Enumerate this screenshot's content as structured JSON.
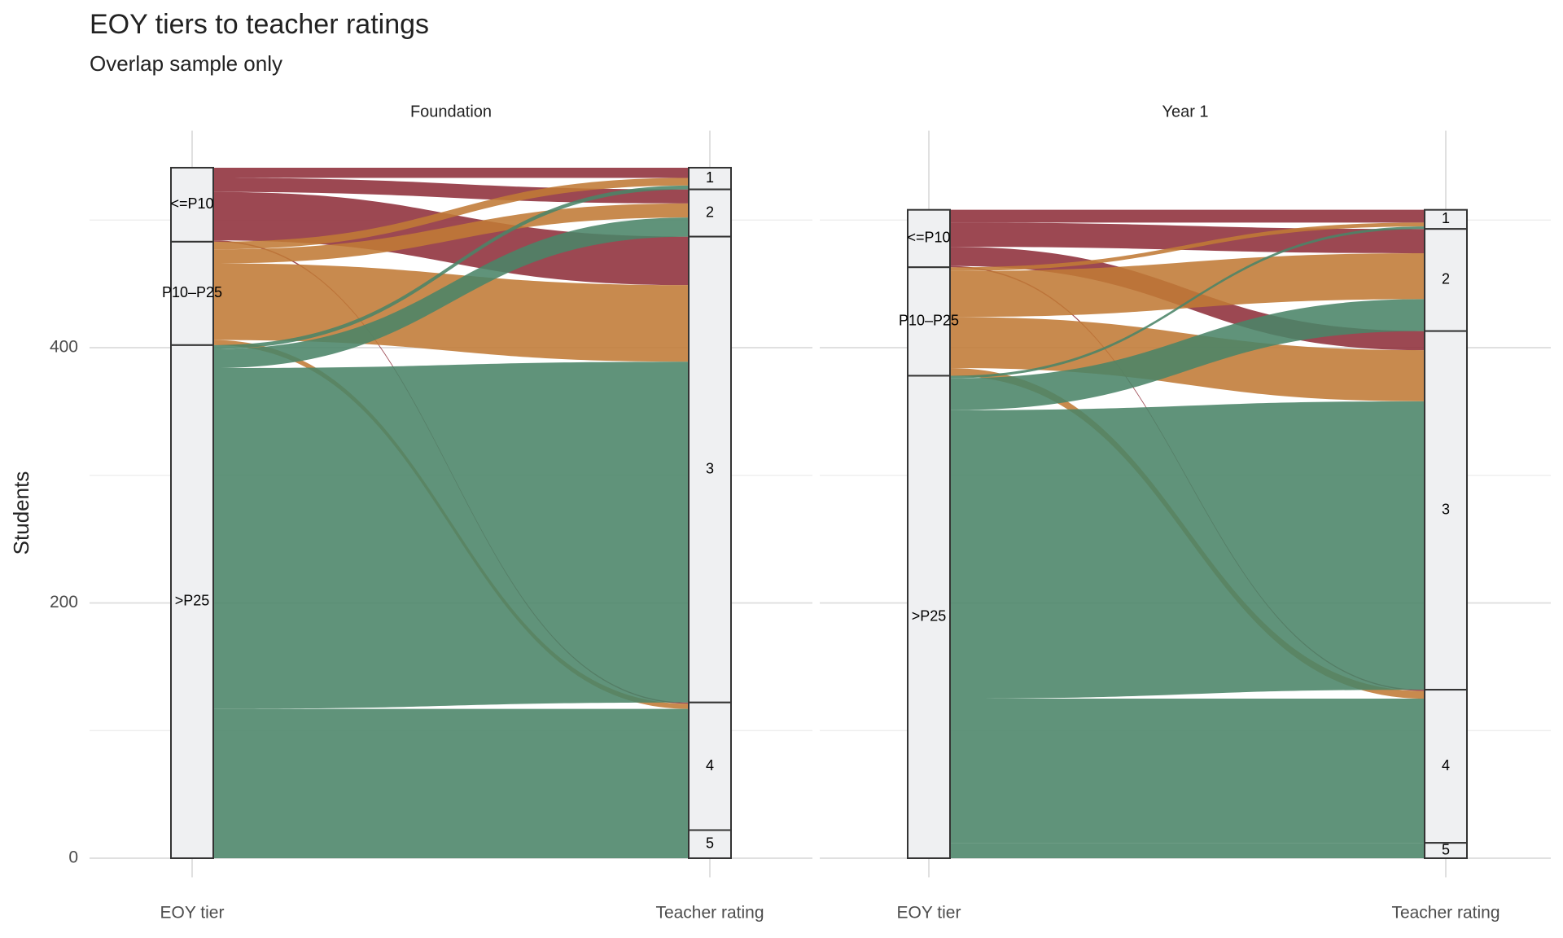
{
  "chart_data": {
    "type": "alluvial",
    "title": "EOY tiers to teacher ratings",
    "subtitle": "Overlap sample only",
    "y_label": "Students",
    "axes": [
      "EOY tier",
      "Teacher rating"
    ],
    "ylim": [
      -15,
      570
    ],
    "yticks": [
      0,
      200,
      400
    ],
    "minor_yticks": [
      100,
      300,
      500
    ],
    "rating_levels": [
      "1",
      "2",
      "3",
      "4",
      "5"
    ],
    "panels": [
      {
        "title": "Foundation",
        "series": [
          {
            "name": "<=P10",
            "color": "#8e2f3a",
            "values": [
              8,
              11,
              38,
              1,
              0
            ]
          },
          {
            "name": "P10–P25",
            "color": "#c07a35",
            "values": [
              6,
              11,
              60,
              4,
              0
            ]
          },
          {
            "name": ">P25",
            "color": "#4a8468",
            "values": [
              3,
              15,
              267,
              95,
              22
            ]
          }
        ]
      },
      {
        "title": "Year 1",
        "series": [
          {
            "name": "<=P10",
            "color": "#8e2f3a",
            "values": [
              10,
              19,
              15,
              1,
              0
            ]
          },
          {
            "name": "P10–P25",
            "color": "#c07a35",
            "values": [
              3,
              36,
              40,
              6,
              0
            ]
          },
          {
            "name": ">P25",
            "color": "#4a8468",
            "values": [
              2,
              25,
              226,
              113,
              12
            ]
          }
        ]
      }
    ]
  }
}
